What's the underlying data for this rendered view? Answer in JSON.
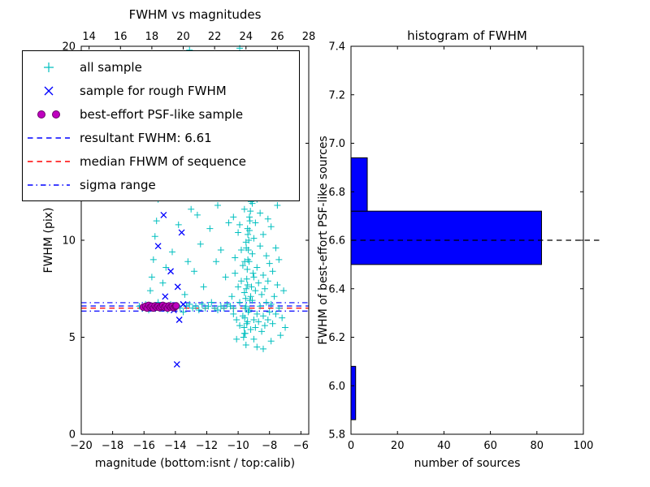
{
  "legend": {
    "entries": [
      {
        "label": "all sample",
        "marker": "plus",
        "color": "#00bfbf"
      },
      {
        "label": "sample for rough FWHM",
        "marker": "x",
        "color": "#0000ff"
      },
      {
        "label": "best-effort PSF-like sample",
        "marker": "circle-pair",
        "color": "#bf00bf",
        "edge": "#6a006a"
      },
      {
        "label": "resultant FWHM: 6.61",
        "marker": "dashed-line",
        "color": "#0000ff"
      },
      {
        "label": "median FHWM of sequence",
        "marker": "dashed-line",
        "color": "#ff0000"
      },
      {
        "label": "sigma range",
        "marker": "dashdot-line",
        "color": "#0000ff"
      }
    ]
  },
  "chart_data": [
    {
      "type": "scatter",
      "title": "FWHM vs magnitudes",
      "xlabel": "magnitude (bottom:isnt / top:calib)",
      "ylabel": "FWHM (pix)",
      "xlim": [
        -20,
        -5.5
      ],
      "ylim": [
        0,
        20
      ],
      "x_ticks_bottom": [
        -20,
        -18,
        -16,
        -14,
        -12,
        -10,
        -8,
        -6
      ],
      "x_ticks_top": [
        14,
        16,
        18,
        20,
        22,
        24,
        26,
        28
      ],
      "top_axis_offset": 33.5,
      "y_ticks": [
        0,
        5,
        10,
        15,
        20
      ],
      "ref_lines": [
        {
          "name": "resultant-fwhm",
          "label": "resultant FWHM: 6.61",
          "y": 6.61,
          "style": "dashed",
          "color": "#0000ff"
        },
        {
          "name": "median-fwhm",
          "label": "median FHWM of sequence",
          "y": 6.5,
          "style": "dashed",
          "color": "#ff0000"
        },
        {
          "name": "sigma-upper",
          "label": "sigma range",
          "y": 6.78,
          "style": "dashdot",
          "color": "#0000ff"
        },
        {
          "name": "sigma-lower",
          "label": "sigma range",
          "y": 6.35,
          "style": "dashdot",
          "color": "#0000ff"
        }
      ],
      "series": [
        {
          "name": "all sample",
          "marker": "plus",
          "color": "#00bfbf",
          "points": [
            [
              -16.3,
              6.6
            ],
            [
              -16.1,
              6.5
            ],
            [
              -15.9,
              6.7
            ],
            [
              -15.7,
              6.4
            ],
            [
              -15.5,
              6.6
            ],
            [
              -15.3,
              6.5
            ],
            [
              -15.1,
              6.8
            ],
            [
              -14.9,
              6.5
            ],
            [
              -14.7,
              6.6
            ],
            [
              -14.5,
              6.4
            ],
            [
              -14.3,
              6.7
            ],
            [
              -14.1,
              6.5
            ],
            [
              -13.9,
              6.6
            ],
            [
              -13.7,
              6.5
            ],
            [
              -13.5,
              6.3
            ],
            [
              -13.3,
              6.6
            ],
            [
              -13.1,
              6.7
            ],
            [
              -12.9,
              6.5
            ],
            [
              -12.7,
              6.6
            ],
            [
              -12.5,
              6.4
            ],
            [
              -12.3,
              6.7
            ],
            [
              -12.1,
              6.5
            ],
            [
              -11.9,
              6.6
            ],
            [
              -11.7,
              6.8
            ],
            [
              -11.5,
              6.5
            ],
            [
              -11.3,
              6.4
            ],
            [
              -11.1,
              6.6
            ],
            [
              -10.9,
              6.5
            ],
            [
              -10.7,
              6.7
            ],
            [
              -10.5,
              6.6
            ],
            [
              -10.3,
              6.5
            ],
            [
              -15.6,
              7.4
            ],
            [
              -15.5,
              8.1
            ],
            [
              -15.4,
              9.0
            ],
            [
              -15.3,
              10.2
            ],
            [
              -15.2,
              11.0
            ],
            [
              -15.1,
              12.1
            ],
            [
              -14.8,
              7.8
            ],
            [
              -14.6,
              8.6
            ],
            [
              -14.2,
              9.4
            ],
            [
              -13.8,
              10.8
            ],
            [
              -13.4,
              7.2
            ],
            [
              -13.2,
              8.9
            ],
            [
              -13.0,
              11.6
            ],
            [
              -14.0,
              12.6
            ],
            [
              -15.0,
              13.4
            ],
            [
              -13.1,
              19.8
            ],
            [
              -13.0,
              19.2
            ],
            [
              -9.9,
              19.9
            ],
            [
              -9.7,
              19.3
            ],
            [
              -8.6,
              19.6
            ],
            [
              -11.2,
              18.4
            ],
            [
              -10.1,
              17.7
            ],
            [
              -12.0,
              17.1
            ],
            [
              -8.9,
              16.9
            ],
            [
              -9.4,
              16.2
            ],
            [
              -10.6,
              15.8
            ],
            [
              -11.6,
              15.1
            ],
            [
              -8.3,
              15.4
            ],
            [
              -9.1,
              14.6
            ],
            [
              -10.0,
              14.1
            ],
            [
              -8.7,
              13.8
            ],
            [
              -9.8,
              13.2
            ],
            [
              -10.4,
              12.8
            ],
            [
              -12.8,
              8.4
            ],
            [
              -12.4,
              9.8
            ],
            [
              -12.2,
              7.6
            ],
            [
              -11.8,
              10.6
            ],
            [
              -11.4,
              8.9
            ],
            [
              -11.9,
              12.2
            ],
            [
              -11.1,
              9.5
            ],
            [
              -12.6,
              11.3
            ],
            [
              -10.8,
              8.1
            ],
            [
              -10.6,
              10.9
            ],
            [
              -10.9,
              12.5
            ],
            [
              -11.3,
              11.8
            ],
            [
              -10.4,
              7.1
            ],
            [
              -10.3,
              6.2
            ],
            [
              -10.2,
              8.3
            ],
            [
              -10.1,
              5.9
            ],
            [
              -10.0,
              7.6
            ],
            [
              -10.2,
              9.1
            ],
            [
              -10.0,
              10.4
            ],
            [
              -10.3,
              11.2
            ],
            [
              -9.9,
              5.6
            ],
            [
              -9.9,
              6.8
            ],
            [
              -9.8,
              7.9
            ],
            [
              -9.8,
              9.5
            ],
            [
              -9.7,
              6.1
            ],
            [
              -9.7,
              8.7
            ],
            [
              -9.6,
              5.2
            ],
            [
              -9.6,
              7.3
            ],
            [
              -9.5,
              6.6
            ],
            [
              -9.5,
              9.9
            ],
            [
              -9.9,
              10.8
            ],
            [
              -9.6,
              11.6
            ],
            [
              -9.8,
              12.3
            ],
            [
              -9.4,
              5.8
            ],
            [
              -9.4,
              7.7
            ],
            [
              -9.3,
              6.4
            ],
            [
              -9.3,
              8.9
            ],
            [
              -9.2,
              5.4
            ],
            [
              -9.2,
              7.1
            ],
            [
              -9.1,
              6.9
            ],
            [
              -9.1,
              9.3
            ],
            [
              -9.0,
              5.9
            ],
            [
              -9.0,
              8.1
            ],
            [
              -9.4,
              10.6
            ],
            [
              -9.1,
              11.9
            ],
            [
              -9.3,
              12.7
            ],
            [
              -9.0,
              10.1
            ],
            [
              -8.9,
              5.5
            ],
            [
              -8.9,
              7.4
            ],
            [
              -8.8,
              6.2
            ],
            [
              -8.8,
              8.6
            ],
            [
              -8.7,
              5.8
            ],
            [
              -8.7,
              7.8
            ],
            [
              -8.6,
              6.6
            ],
            [
              -8.6,
              9.7
            ],
            [
              -8.5,
              5.3
            ],
            [
              -8.5,
              7.2
            ],
            [
              -8.9,
              10.9
            ],
            [
              -8.6,
              11.4
            ],
            [
              -8.8,
              12.1
            ],
            [
              -8.5,
              12.9
            ],
            [
              -8.4,
              6.1
            ],
            [
              -8.4,
              8.2
            ],
            [
              -8.3,
              5.6
            ],
            [
              -8.3,
              7.5
            ],
            [
              -8.2,
              6.8
            ],
            [
              -8.2,
              9.2
            ],
            [
              -8.1,
              5.9
            ],
            [
              -8.1,
              7.9
            ],
            [
              -8.0,
              6.3
            ],
            [
              -8.0,
              8.8
            ],
            [
              -8.4,
              10.3
            ],
            [
              -8.1,
              11.1
            ],
            [
              -8.3,
              12.4
            ],
            [
              -7.9,
              6.7
            ],
            [
              -7.8,
              5.7
            ],
            [
              -7.8,
              8.4
            ],
            [
              -7.7,
              7.1
            ],
            [
              -7.6,
              6.2
            ],
            [
              -7.6,
              9.6
            ],
            [
              -7.5,
              7.7
            ],
            [
              -7.4,
              6.5
            ],
            [
              -7.9,
              10.7
            ],
            [
              -7.5,
              11.8
            ],
            [
              -7.7,
              12.2
            ],
            [
              -7.4,
              9.0
            ],
            [
              -9.5,
              4.6
            ],
            [
              -9.0,
              4.9
            ],
            [
              -8.4,
              4.4
            ],
            [
              -7.9,
              4.8
            ],
            [
              -8.8,
              4.5
            ],
            [
              -10.1,
              4.9
            ],
            [
              -7.3,
              5.1
            ],
            [
              -7.2,
              6.0
            ],
            [
              -7.1,
              7.4
            ],
            [
              -7.0,
              5.5
            ],
            [
              -9.65,
              5.0
            ],
            [
              -9.62,
              5.5
            ],
            [
              -9.58,
              6.0
            ],
            [
              -9.55,
              6.5
            ],
            [
              -9.52,
              7.0
            ],
            [
              -9.48,
              7.5
            ],
            [
              -9.45,
              8.0
            ],
            [
              -9.42,
              8.5
            ],
            [
              -9.38,
              9.0
            ],
            [
              -9.35,
              9.5
            ],
            [
              -9.32,
              10.0
            ],
            [
              -9.28,
              10.5
            ],
            [
              -9.25,
              11.0
            ],
            [
              -9.22,
              11.5
            ],
            [
              -9.18,
              12.0
            ],
            [
              -9.15,
              12.5
            ],
            [
              -9.55,
              5.2
            ],
            [
              -9.45,
              5.7
            ],
            [
              -9.35,
              6.3
            ],
            [
              -9.25,
              6.9
            ],
            [
              -9.15,
              7.6
            ],
            [
              -9.05,
              8.3
            ],
            [
              -9.58,
              8.9
            ],
            [
              -9.48,
              9.6
            ],
            [
              -9.38,
              10.3
            ],
            [
              -9.28,
              11.2
            ],
            [
              -9.18,
              12.9
            ],
            [
              -9.08,
              13.3
            ]
          ]
        },
        {
          "name": "sample for rough FWHM",
          "marker": "x",
          "color": "#0000ff",
          "points": [
            [
              -15.55,
              12.9
            ],
            [
              -15.1,
              9.7
            ],
            [
              -14.75,
              11.3
            ],
            [
              -14.3,
              8.4
            ],
            [
              -13.85,
              7.6
            ],
            [
              -13.6,
              10.4
            ],
            [
              -15.3,
              6.6
            ],
            [
              -14.9,
              6.5
            ],
            [
              -14.5,
              6.6
            ],
            [
              -14.1,
              6.4
            ],
            [
              -13.75,
              5.9
            ],
            [
              -13.9,
              3.6
            ],
            [
              -13.5,
              6.7
            ],
            [
              -14.65,
              7.1
            ]
          ]
        },
        {
          "name": "best-effort PSF-like sample",
          "marker": "circle",
          "color": "#bf00bf",
          "edge": "#6a006a",
          "points": [
            [
              -16.05,
              6.55
            ],
            [
              -15.9,
              6.6
            ],
            [
              -15.8,
              6.5
            ],
            [
              -15.7,
              6.65
            ],
            [
              -15.6,
              6.55
            ],
            [
              -15.5,
              6.6
            ],
            [
              -15.4,
              6.5
            ],
            [
              -15.3,
              6.62
            ],
            [
              -15.2,
              6.55
            ],
            [
              -15.1,
              6.6
            ],
            [
              -15.0,
              6.52
            ],
            [
              -14.9,
              6.58
            ],
            [
              -14.8,
              6.65
            ],
            [
              -14.7,
              6.55
            ],
            [
              -14.6,
              6.6
            ],
            [
              -14.5,
              6.5
            ],
            [
              -14.4,
              6.62
            ],
            [
              -14.3,
              6.55
            ],
            [
              -14.2,
              6.6
            ],
            [
              -14.1,
              6.52
            ],
            [
              -14.0,
              6.58
            ],
            [
              -13.95,
              6.62
            ]
          ]
        }
      ]
    },
    {
      "type": "bar",
      "orientation": "horizontal",
      "title": "histogram of FWHM",
      "xlabel": "number of sources",
      "ylabel": "FWHM of best-effort PSF-like sources",
      "xlim": [
        0,
        100
      ],
      "ylim": [
        5.8,
        7.4
      ],
      "x_ticks": [
        0,
        20,
        40,
        60,
        80,
        100
      ],
      "y_tick_labels": [
        "5.8",
        "6.0",
        "6.2",
        "6.4",
        "6.6",
        "6.8",
        "7.0",
        "7.2",
        "7.4"
      ],
      "bar_color": "#0000ff",
      "bar_edge": "#000000",
      "bins": [
        {
          "fwhm_from": 5.86,
          "fwhm_to": 6.08,
          "count": 2
        },
        {
          "fwhm_from": 6.5,
          "fwhm_to": 6.72,
          "count": 82
        },
        {
          "fwhm_from": 6.72,
          "fwhm_to": 6.94,
          "count": 7
        }
      ],
      "median_line": {
        "y": 6.6,
        "style": "dashed",
        "color": "#000000"
      }
    }
  ]
}
